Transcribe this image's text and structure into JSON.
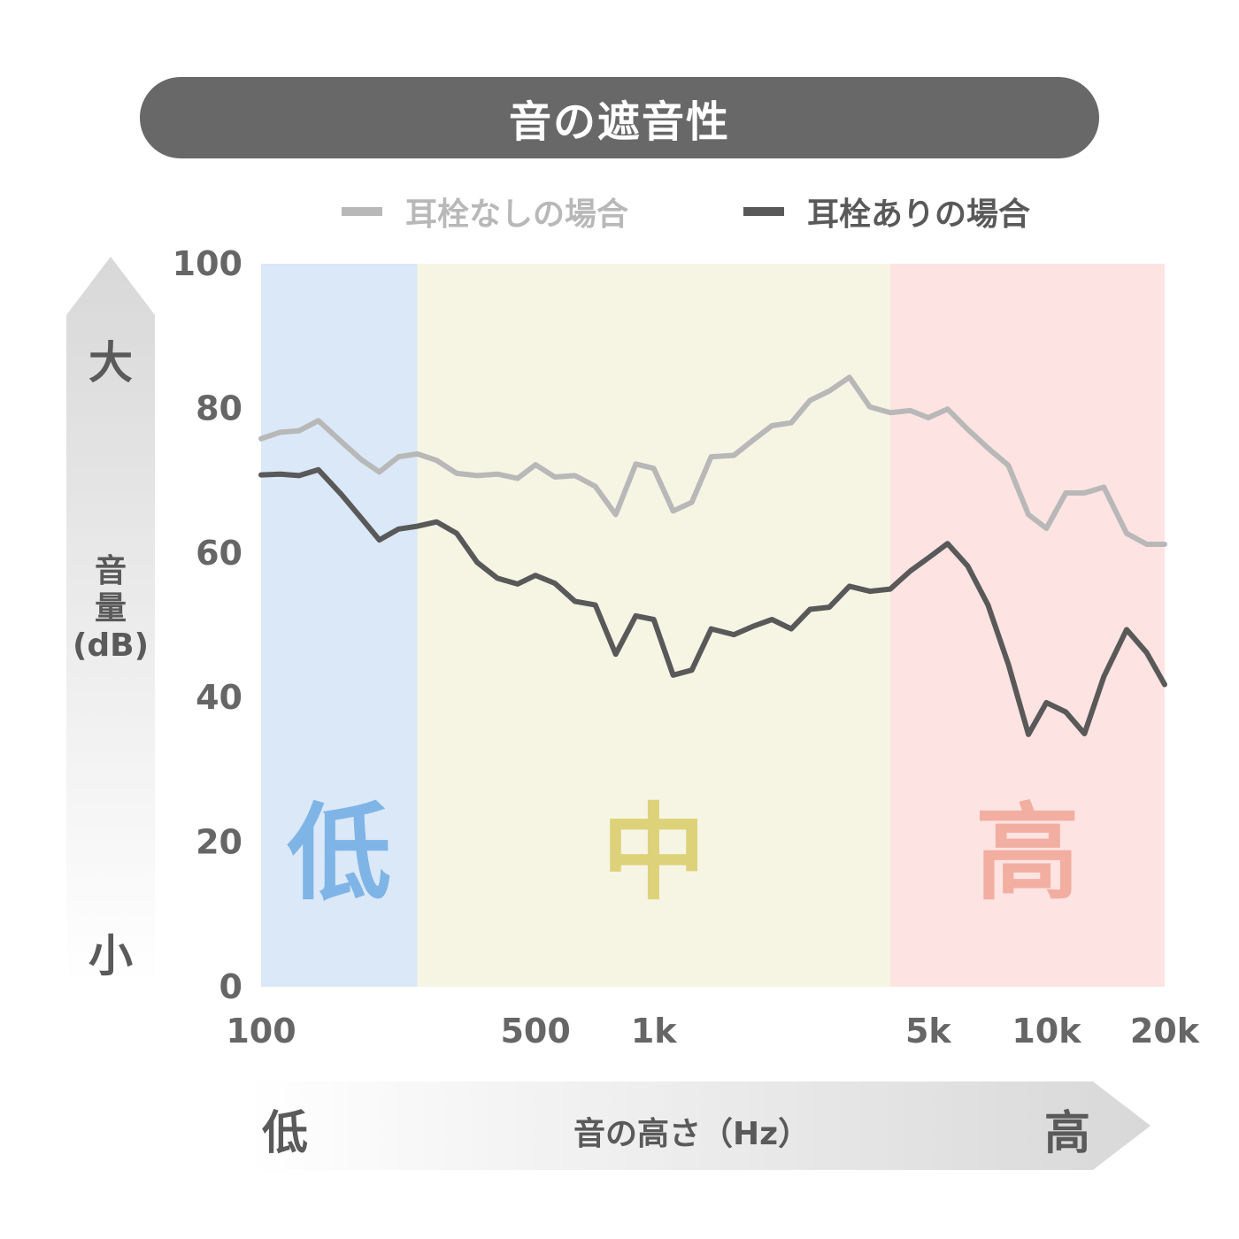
{
  "title": "音の遮音性",
  "legend": {
    "without": "耳栓なしの場合",
    "with": "耳栓ありの場合"
  },
  "y_axis": {
    "big": "大",
    "small": "小",
    "label_line1": "音",
    "label_line2": "量",
    "label_line3": "(dB)"
  },
  "x_axis": {
    "low": "低",
    "high": "高",
    "label": "音の高さ（Hz）"
  },
  "bands": [
    {
      "label": "低",
      "from": 100,
      "to": 250,
      "fill": "#dae8f7",
      "text_color": "#7fb4e6"
    },
    {
      "label": "中",
      "from": 250,
      "to": 4000,
      "fill": "#f6f5e4",
      "text_color": "#ddd27a"
    },
    {
      "label": "高",
      "from": 4000,
      "to": 20000,
      "fill": "#fde3e1",
      "text_color": "#f2aea0"
    }
  ],
  "colors": {
    "without": "#b8b8b8",
    "with": "#595959",
    "tick": "#666666",
    "title_bg": "#686868"
  },
  "chart_data": {
    "type": "line",
    "x_scale": "log",
    "xlim": [
      100,
      20000
    ],
    "ylim": [
      0,
      100
    ],
    "x_ticks": [
      {
        "value": 100,
        "label": "100"
      },
      {
        "value": 500,
        "label": "500"
      },
      {
        "value": 1000,
        "label": "1k"
      },
      {
        "value": 5000,
        "label": "5k"
      },
      {
        "value": 10000,
        "label": "10k"
      },
      {
        "value": 20000,
        "label": "20k"
      }
    ],
    "y_ticks": [
      0,
      20,
      40,
      60,
      80,
      100
    ],
    "x": [
      100,
      112,
      125,
      140,
      160,
      180,
      200,
      224,
      250,
      280,
      315,
      355,
      400,
      450,
      500,
      560,
      630,
      710,
      800,
      900,
      1000,
      1120,
      1250,
      1400,
      1600,
      1800,
      2000,
      2240,
      2500,
      2800,
      3150,
      3550,
      4000,
      4500,
      5000,
      5600,
      6300,
      7100,
      8000,
      9000,
      10000,
      11200,
      12500,
      14000,
      16000,
      18000,
      20000
    ],
    "series": [
      {
        "name": "耳栓なしの場合",
        "values": [
          75.8,
          76.7,
          76.9,
          78.3,
          75.4,
          72.9,
          71.2,
          73.3,
          73.7,
          72.8,
          71.0,
          70.7,
          70.9,
          70.3,
          72.2,
          70.5,
          70.7,
          69.2,
          65.3,
          72.3,
          71.7,
          65.8,
          67.0,
          73.3,
          73.5,
          75.7,
          77.6,
          78.0,
          81.1,
          82.4,
          84.3,
          80.2,
          79.4,
          79.7,
          78.7,
          79.9,
          77.1,
          74.5,
          72.1,
          65.3,
          63.4,
          68.3,
          68.3,
          69.1,
          62.7,
          61.2,
          61.2
        ]
      },
      {
        "name": "耳栓ありの場合",
        "values": [
          70.8,
          70.9,
          70.7,
          71.5,
          68.1,
          64.8,
          61.8,
          63.3,
          63.7,
          64.3,
          62.7,
          58.7,
          56.5,
          55.7,
          56.9,
          55.8,
          53.3,
          52.8,
          46.0,
          51.3,
          50.8,
          43.1,
          43.8,
          49.5,
          48.7,
          49.9,
          50.8,
          49.5,
          52.2,
          52.5,
          55.4,
          54.7,
          55.0,
          57.5,
          59.3,
          61.3,
          58.2,
          52.8,
          44.6,
          34.9,
          39.3,
          38.0,
          35.0,
          42.9,
          49.4,
          46.2,
          41.8
        ]
      }
    ]
  }
}
